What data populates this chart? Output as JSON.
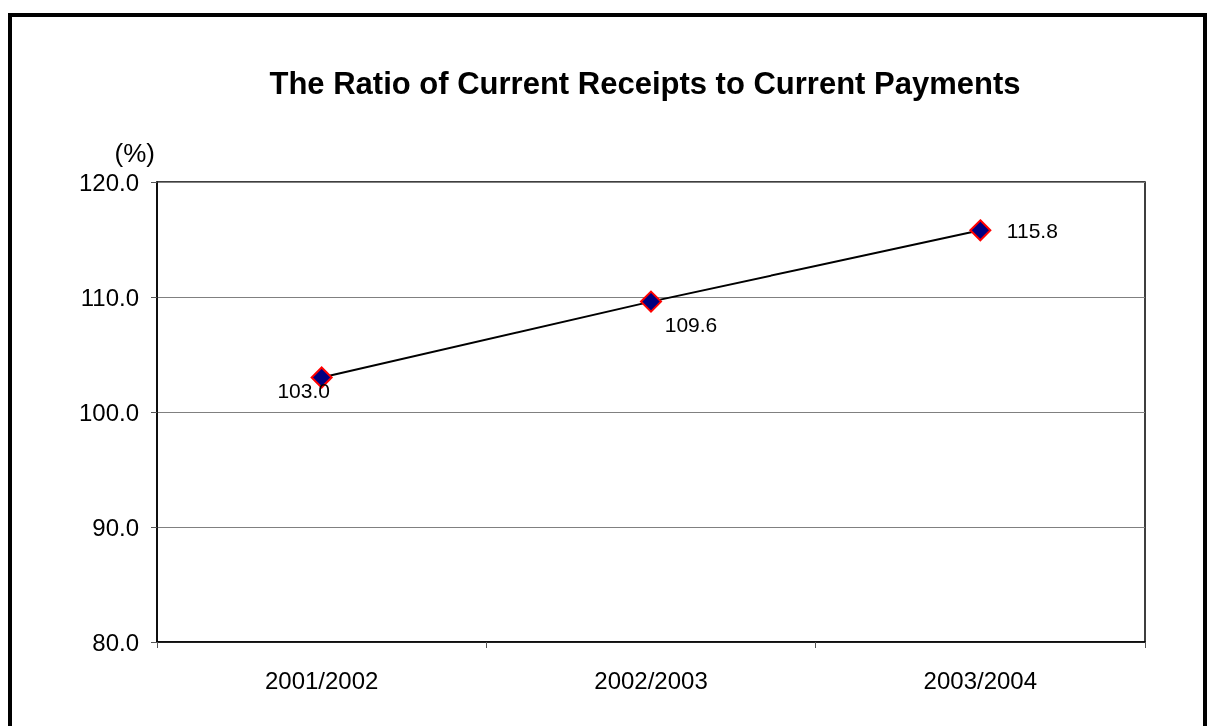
{
  "chart_data": {
    "type": "line",
    "title": "The Ratio of Current Receipts to Current Payments",
    "ylabel": "(%)",
    "categories": [
      "2001/2002",
      "2002/2003",
      "2003/2004"
    ],
    "series": [
      {
        "color": "#000000",
        "values": [
          103.0,
          109.6,
          115.8
        ],
        "value_labels": [
          "103.0",
          "109.6",
          "115.8"
        ]
      }
    ],
    "ylim": [
      80,
      120
    ],
    "yticks": [
      {
        "value": 80,
        "label": "80.0"
      },
      {
        "value": 90,
        "label": "90.0"
      },
      {
        "value": 100,
        "label": "100.0"
      },
      {
        "value": 110,
        "label": "110.0"
      },
      {
        "value": 120,
        "label": "120.0"
      }
    ],
    "grid": "y",
    "marker": "diamond",
    "line_style": "solid"
  }
}
